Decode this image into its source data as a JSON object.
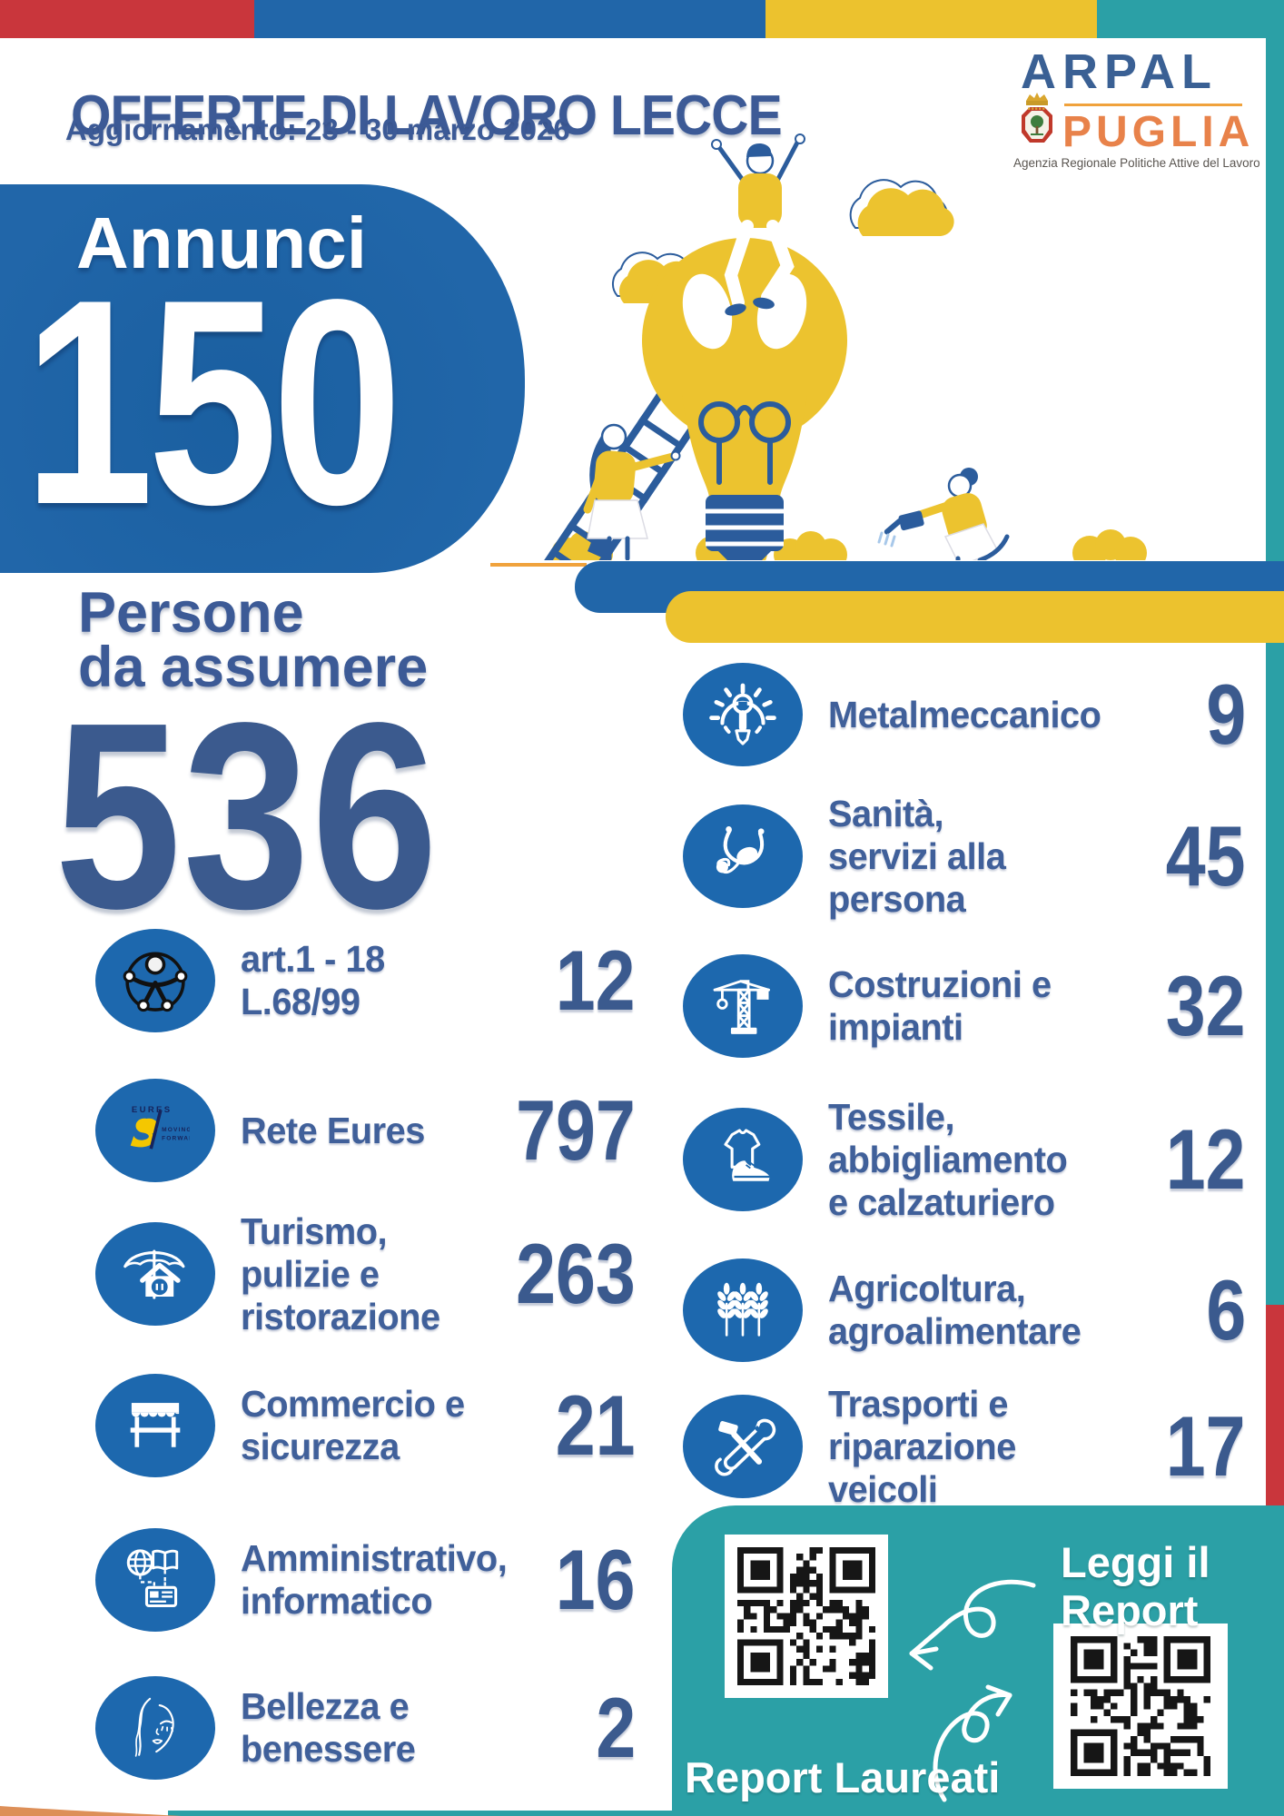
{
  "header": {
    "title": "OFFERTE DI LAVORO LECCE",
    "subtitle": "Aggiornamento: 23 - 30 marzo 2026"
  },
  "logo": {
    "name": "ARPAL",
    "region": "PUGLIA",
    "tagline": "Agenzia Regionale Politiche Attive del Lavoro"
  },
  "annunci": {
    "label": "Annunci",
    "value": "150"
  },
  "persone": {
    "label": "Persone\nda assumere",
    "value": "536"
  },
  "sectors_left": [
    {
      "icon": "accessibility-icon",
      "label": "art.1 - 18\nL.68/99",
      "value": "12"
    },
    {
      "icon": "eures-logo",
      "label": "Rete Eures",
      "value": "797"
    },
    {
      "icon": "tourism-icon",
      "label": "Turismo,\npulizie e\nristorazione",
      "value": "263"
    },
    {
      "icon": "market-stall-icon",
      "label": "Commercio e\nsicurezza",
      "value": "21"
    },
    {
      "icon": "admin-it-icon",
      "label": "Amministrativo,\ninformatico",
      "value": "16"
    },
    {
      "icon": "beauty-icon",
      "label": "Bellezza e\nbenessere",
      "value": "2"
    }
  ],
  "sectors_right": [
    {
      "icon": "gear-wrench-icon",
      "label": "Metalmeccanico",
      "value": "9"
    },
    {
      "icon": "stethoscope-icon",
      "label": "Sanità,\nservizi alla\npersona",
      "value": "45"
    },
    {
      "icon": "crane-icon",
      "label": "Costruzioni e\nimpianti",
      "value": "32"
    },
    {
      "icon": "textile-icon",
      "label": "Tessile,\nabbigliamento\ne calzaturiero",
      "value": "12"
    },
    {
      "icon": "wheat-icon",
      "label": "Agricoltura,\nagroalimentare",
      "value": "6"
    },
    {
      "icon": "tools-icon",
      "label": "Trasporti e\nriparazione\nveicoli",
      "value": "17"
    }
  ],
  "report_box": {
    "title": "Leggi il\nReport",
    "caption": "Report Laureati"
  },
  "colors": {
    "red": "#c9363c",
    "blue": "#2166a9",
    "yellow": "#ecc22e",
    "teal": "#2ba0a6",
    "panel_teal": "#2ba0a6",
    "icon_blue": "#1d68ae",
    "box_blue": "#2166a9",
    "title_blue": "#3c5a96",
    "label_blue": "#40609a",
    "value_blue": "#3b5a8e",
    "orange": "#f0a23c",
    "logo_blue": "#3a6094",
    "logo_orange": "#e8824a",
    "tagline_gray": "#5a5550",
    "wedge_orange": "#dd8f58",
    "illustration_yellow": "#ecc32f",
    "illustration_navy": "#2b5c9c"
  }
}
